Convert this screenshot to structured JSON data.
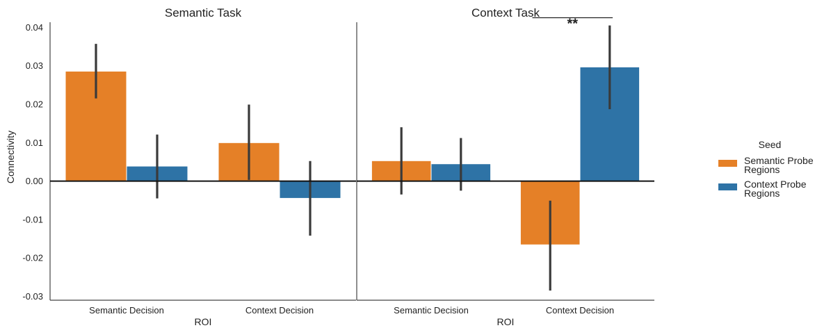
{
  "chart_data": {
    "type": "bar",
    "ylabel": "Connectivity",
    "xlabel": "ROI",
    "ylim": [
      -0.031,
      0.0435
    ],
    "yticks": [
      0.04,
      0.03,
      0.02,
      0.01,
      0.0,
      -0.01,
      -0.02,
      -0.03
    ],
    "ytick_labels": [
      "0.04",
      "0.03",
      "0.02",
      "0.01",
      "0.00",
      "-0.01",
      "-0.02",
      "-0.03"
    ],
    "categories": [
      "Semantic Decision",
      "Context Decision"
    ],
    "legend": {
      "title": "Seed",
      "position": "right",
      "entries": [
        {
          "label_lines": [
            "Semantic Probe",
            "Regions"
          ],
          "color": "#E58027"
        },
        {
          "label_lines": [
            "Context Probe",
            "Regions"
          ],
          "color": "#2E73A6"
        }
      ]
    },
    "panels": [
      {
        "title": "Semantic Task",
        "series": [
          {
            "values": [
              0.0285,
              0.0099
            ],
            "ci_low": [
              0.0215,
              0.0003
            ],
            "ci_high": [
              0.0357,
              0.0199
            ]
          },
          {
            "values": [
              0.0038,
              -0.0044
            ],
            "ci_low": [
              -0.0045,
              -0.0142
            ],
            "ci_high": [
              0.0121,
              0.0052
            ]
          }
        ],
        "annotation": null
      },
      {
        "title": "Context Task",
        "series": [
          {
            "values": [
              0.0052,
              -0.0165
            ],
            "ci_low": [
              -0.0035,
              -0.0285
            ],
            "ci_high": [
              0.014,
              -0.0051
            ]
          },
          {
            "values": [
              0.0044,
              0.0296
            ],
            "ci_low": [
              -0.0025,
              0.0187
            ],
            "ci_high": [
              0.0112,
              0.0405
            ]
          }
        ],
        "annotation": {
          "text": "**",
          "y": 0.0425
        }
      }
    ]
  }
}
